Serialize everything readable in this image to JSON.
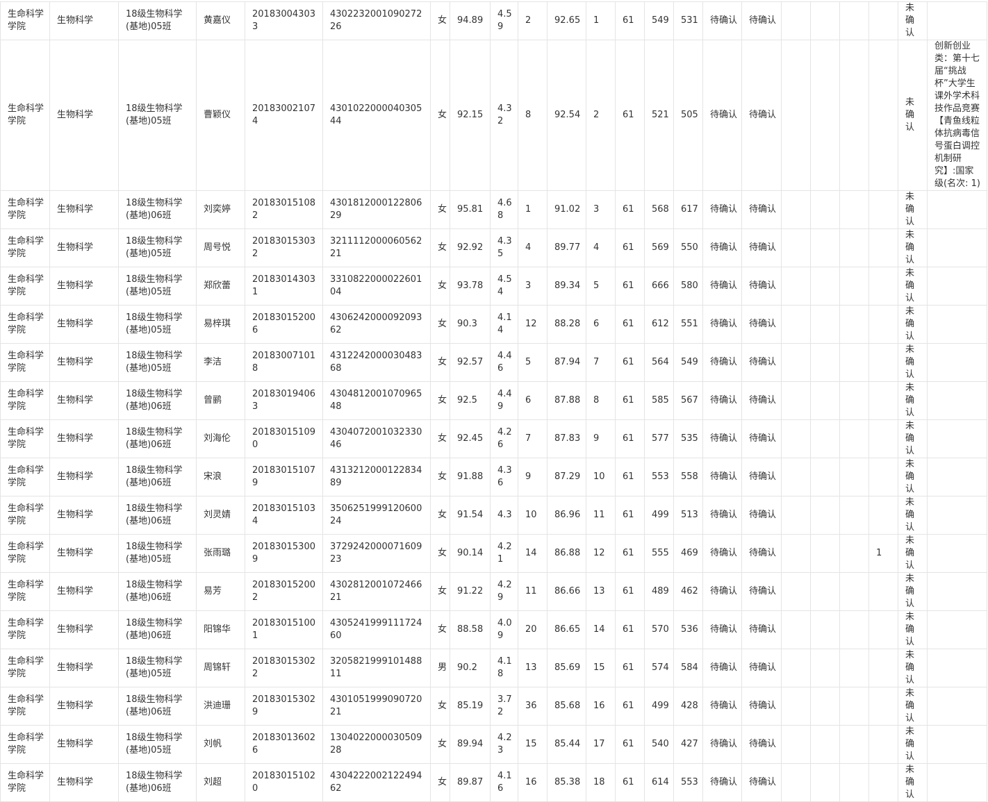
{
  "table": {
    "rows": [
      [
        "生命科学学院",
        "生物科学",
        "18级生物科学(基地)05班",
        "黄嘉仪",
        "201830043033",
        "430223200109027226",
        "女",
        "94.89",
        "4.59",
        "2",
        "92.65",
        "1",
        "61",
        "549",
        "531",
        "待确认",
        "待确认",
        null,
        null,
        null,
        null,
        "未确认",
        null
      ],
      [
        "生命科学学院",
        "生物科学",
        "18级生物科学(基地)05班",
        "曹颖仪",
        "201830021074",
        "430102200004030544",
        "女",
        "92.15",
        "4.32",
        "8",
        "92.54",
        "2",
        "61",
        "521",
        "505",
        "待确认",
        "待确认",
        null,
        null,
        null,
        null,
        "未确认",
        "创新创业类：第十七届“挑战杯”大学生课外学术科技作品竞赛【青鱼线粒体抗病毒信号蛋白调控机制研究】:国家级(名次: 1)"
      ],
      [
        "生命科学学院",
        "生物科学",
        "18级生物科学(基地)06班",
        "刘奕婷",
        "201830151082",
        "430181200012280629",
        "女",
        "95.81",
        "4.68",
        "1",
        "91.02",
        "3",
        "61",
        "568",
        "617",
        "待确认",
        "待确认",
        null,
        null,
        null,
        null,
        "未确认",
        null
      ],
      [
        "生命科学学院",
        "生物科学",
        "18级生物科学(基地)05班",
        "周号悦",
        "201830153032",
        "321111200006056221",
        "女",
        "92.92",
        "4.35",
        "4",
        "89.77",
        "4",
        "61",
        "569",
        "550",
        "待确认",
        "待确认",
        null,
        null,
        null,
        null,
        "未确认",
        null
      ],
      [
        "生命科学学院",
        "生物科学",
        "18级生物科学(基地)05班",
        "郑欣蕾",
        "201830143031",
        "331082200002260104",
        "女",
        "93.78",
        "4.54",
        "3",
        "89.34",
        "5",
        "61",
        "666",
        "580",
        "待确认",
        "待确认",
        null,
        null,
        null,
        null,
        "未确认",
        null
      ],
      [
        "生命科学学院",
        "生物科学",
        "18级生物科学(基地)05班",
        "易梓琪",
        "201830152006",
        "430624200009209362",
        "女",
        "90.3",
        "4.14",
        "12",
        "88.28",
        "6",
        "61",
        "612",
        "551",
        "待确认",
        "待确认",
        null,
        null,
        null,
        null,
        "未确认",
        null
      ],
      [
        "生命科学学院",
        "生物科学",
        "18级生物科学(基地)05班",
        "李洁",
        "201830071018",
        "431224200003048368",
        "女",
        "92.57",
        "4.46",
        "5",
        "87.94",
        "7",
        "61",
        "564",
        "549",
        "待确认",
        "待确认",
        null,
        null,
        null,
        null,
        "未确认",
        null
      ],
      [
        "生命科学学院",
        "生物科学",
        "18级生物科学(基地)06班",
        "曾鹂",
        "201830194063",
        "430481200107096548",
        "女",
        "92.5",
        "4.49",
        "6",
        "87.88",
        "8",
        "61",
        "585",
        "567",
        "待确认",
        "待确认",
        null,
        null,
        null,
        null,
        "未确认",
        null
      ],
      [
        "生命科学学院",
        "生物科学",
        "18级生物科学(基地)06班",
        "刘海伦",
        "201830151090",
        "430407200103233046",
        "女",
        "92.45",
        "4.26",
        "7",
        "87.83",
        "9",
        "61",
        "577",
        "535",
        "待确认",
        "待确认",
        null,
        null,
        null,
        null,
        "未确认",
        null
      ],
      [
        "生命科学学院",
        "生物科学",
        "18级生物科学(基地)06班",
        "宋浪",
        "201830151079",
        "431321200012283489",
        "女",
        "91.88",
        "4.36",
        "9",
        "87.29",
        "10",
        "61",
        "553",
        "558",
        "待确认",
        "待确认",
        null,
        null,
        null,
        null,
        "未确认",
        null
      ],
      [
        "生命科学学院",
        "生物科学",
        "18级生物科学(基地)06班",
        "刘灵婧",
        "201830151034",
        "350625199912060024",
        "女",
        "91.54",
        "4.3",
        "10",
        "86.96",
        "11",
        "61",
        "499",
        "513",
        "待确认",
        "待确认",
        null,
        null,
        null,
        null,
        "未确认",
        null
      ],
      [
        "生命科学学院",
        "生物科学",
        "18级生物科学(基地)05班",
        "张雨璐",
        "201830153009",
        "372924200007160923",
        "女",
        "90.14",
        "4.21",
        "14",
        "86.88",
        "12",
        "61",
        "555",
        "469",
        "待确认",
        "待确认",
        null,
        null,
        null,
        "1",
        "未确认",
        null
      ],
      [
        "生命科学学院",
        "生物科学",
        "18级生物科学(基地)06班",
        "易芳",
        "201830152002",
        "430281200107246621",
        "女",
        "91.22",
        "4.29",
        "11",
        "86.66",
        "13",
        "61",
        "489",
        "462",
        "待确认",
        "待确认",
        null,
        null,
        null,
        null,
        "未确认",
        null
      ],
      [
        "生命科学学院",
        "生物科学",
        "18级生物科学(基地)06班",
        "阳锦华",
        "201830151001",
        "430524199911172460",
        "女",
        "88.58",
        "4.09",
        "20",
        "86.65",
        "14",
        "61",
        "570",
        "536",
        "待确认",
        "待确认",
        null,
        null,
        null,
        null,
        "未确认",
        null
      ],
      [
        "生命科学学院",
        "生物科学",
        "18级生物科学(基地)05班",
        "周锦轩",
        "201830153022",
        "320582199910148811",
        "男",
        "90.2",
        "4.18",
        "13",
        "85.69",
        "15",
        "61",
        "574",
        "584",
        "待确认",
        "待确认",
        null,
        null,
        null,
        null,
        "未确认",
        null
      ],
      [
        "生命科学学院",
        "生物科学",
        "18级生物科学(基地)06班",
        "洪迪珊",
        "201830153029",
        "430105199909072021",
        "女",
        "85.19",
        "3.72",
        "36",
        "85.68",
        "16",
        "61",
        "499",
        "428",
        "待确认",
        "待确认",
        null,
        null,
        null,
        null,
        "未确认",
        null
      ],
      [
        "生命科学学院",
        "生物科学",
        "18级生物科学(基地)05班",
        "刘帆",
        "201830136026",
        "130402200003050928",
        "女",
        "89.94",
        "4.23",
        "15",
        "85.44",
        "17",
        "61",
        "540",
        "427",
        "待确认",
        "待确认",
        null,
        null,
        null,
        null,
        "未确认",
        null
      ],
      [
        "生命科学学院",
        "生物科学",
        "18级生物科学(基地)06班",
        "刘超",
        "201830151020",
        "430422200212249462",
        "女",
        "89.87",
        "4.16",
        "16",
        "85.38",
        "18",
        "61",
        "614",
        "553",
        "待确认",
        "待确认",
        null,
        null,
        null,
        null,
        "未确认",
        null
      ]
    ]
  }
}
